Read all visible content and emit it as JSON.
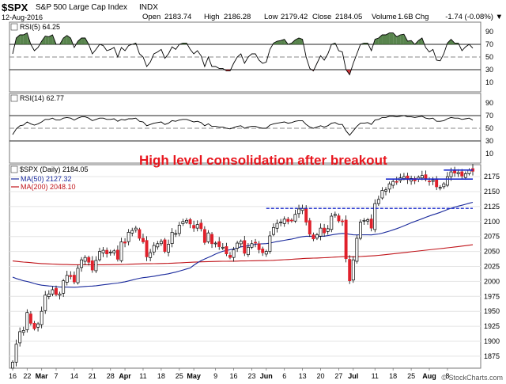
{
  "header": {
    "symbol": "$SPX",
    "name": "S&P 500 Large Cap Index",
    "exchange": "INDX",
    "date": "12-Aug-2016",
    "open_label": "Open",
    "open": "2183.74",
    "high_label": "High",
    "high": "2186.28",
    "low_label": "Low",
    "low": "2179.42",
    "close_label": "Close",
    "close": "2184.05",
    "volume_label": "Volume",
    "volume": "1.6B",
    "chg_label": "Chg",
    "chg": "-1.74 (-0.08%)",
    "chg_arrow": "▼",
    "credit": "© StockCharts.com"
  },
  "colors": {
    "up": "#ffffff",
    "down": "#e0202b",
    "candle_edge": "#000000",
    "ma50": "#1a2a9c",
    "ma200": "#c0141a",
    "rsi_fill": "#3b6e2e",
    "annotation": "#e8161e",
    "resistance": "#1a2acc"
  },
  "chart_data": {
    "type": "candlestick",
    "annotation": "High level consolidation after breakout",
    "x_labels": [
      "16",
      "22",
      "Mar",
      "7",
      "14",
      "21",
      "28",
      "Apr",
      "11",
      "18",
      "25",
      "May",
      "9",
      "16",
      "23",
      "Jun",
      "6",
      "13",
      "20",
      "27",
      "Jul",
      "11",
      "18",
      "25",
      "Aug",
      "8"
    ],
    "price_pane": {
      "label": "$SPX (Daily) 2184.05",
      "legend": [
        {
          "name": "MA(50) 2127.32"
        },
        {
          "name": "MA(200) 2048.10"
        }
      ],
      "ticks": [
        1875,
        1900,
        1925,
        1950,
        1975,
        2000,
        2025,
        2050,
        2075,
        2100,
        2125,
        2150,
        2175
      ],
      "ylim": [
        1855,
        2195
      ],
      "closes": [
        1865,
        1895,
        1916,
        1918,
        1948,
        1930,
        1921,
        1929,
        1950,
        1977,
        1979,
        1986,
        1978,
        1979,
        2001,
        2010,
        2008,
        1999,
        2022,
        2036,
        2040,
        2032,
        2019,
        2035,
        2050,
        2052,
        2046,
        2049,
        2051,
        2037,
        2066,
        2064,
        2082,
        2085,
        2089,
        2072,
        2066,
        2041,
        2048,
        2060,
        2063,
        2067,
        2050,
        2062,
        2082,
        2080,
        2094,
        2100,
        2102,
        2096,
        2089,
        2095,
        2088,
        2065,
        2081,
        2063,
        2064,
        2058,
        2057,
        2046,
        2040,
        2053,
        2064,
        2067,
        2047,
        2057,
        2063,
        2064,
        2053,
        2048,
        2050,
        2076,
        2090,
        2097,
        2099,
        2104,
        2100,
        2102,
        2112,
        2121,
        2122,
        2099,
        2079,
        2071,
        2078,
        2089,
        2081,
        2088,
        2109,
        2112,
        2101,
        2100,
        2038,
        2001,
        2036,
        2072,
        2099,
        2102,
        2103,
        2089,
        2130,
        2137,
        2152,
        2153,
        2163,
        2167,
        2166,
        2173,
        2175,
        2170,
        2172,
        2168,
        2174,
        2177,
        2170,
        2167,
        2169,
        2158,
        2157,
        2163,
        2175,
        2183,
        2181,
        2182,
        2176,
        2180,
        2186,
        2184
      ],
      "resistance_levels": [
        {
          "name": "breakout",
          "value": 2122
        },
        {
          "name": "consolidation-low",
          "value": 2171
        },
        {
          "name": "consolidation-high",
          "value": 2186
        }
      ]
    },
    "rsi14_pane": {
      "label": "RSI(14) 62.77",
      "ticks": [
        10,
        30,
        50,
        70,
        90
      ],
      "ylim": [
        0,
        100
      ],
      "values": [
        40,
        49,
        54,
        55,
        60,
        57,
        55,
        57,
        60,
        64,
        64,
        66,
        63,
        63,
        66,
        67,
        66,
        63,
        66,
        68,
        68,
        66,
        62,
        64,
        66,
        66,
        64,
        64,
        65,
        61,
        64,
        63,
        65,
        65,
        66,
        61,
        60,
        54,
        56,
        58,
        59,
        60,
        56,
        58,
        62,
        61,
        63,
        64,
        64,
        62,
        60,
        61,
        59,
        54,
        57,
        53,
        53,
        52,
        52,
        50,
        49,
        51,
        53,
        54,
        50,
        52,
        53,
        53,
        51,
        50,
        50,
        55,
        57,
        58,
        59,
        60,
        58,
        59,
        61,
        62,
        62,
        56,
        52,
        50,
        52,
        54,
        52,
        54,
        58,
        59,
        56,
        56,
        46,
        39,
        46,
        53,
        58,
        58,
        59,
        56,
        63,
        64,
        67,
        67,
        69,
        69,
        68,
        69,
        70,
        68,
        68,
        67,
        68,
        69,
        66,
        65,
        66,
        61,
        61,
        62,
        65,
        67,
        66,
        66,
        64,
        65,
        66,
        63
      ]
    },
    "rsi5_pane": {
      "label": "RSI(5) 64.25",
      "ticks": [
        10,
        30,
        50,
        70,
        90
      ],
      "ylim": [
        0,
        100
      ],
      "values": [
        55,
        80,
        85,
        85,
        88,
        70,
        60,
        65,
        75,
        83,
        82,
        85,
        70,
        70,
        80,
        84,
        80,
        65,
        75,
        80,
        80,
        70,
        55,
        62,
        70,
        68,
        60,
        62,
        65,
        50,
        65,
        60,
        68,
        70,
        72,
        55,
        50,
        35,
        42,
        55,
        58,
        62,
        48,
        55,
        66,
        62,
        70,
        72,
        72,
        62,
        55,
        60,
        52,
        35,
        50,
        35,
        35,
        32,
        32,
        28,
        28,
        40,
        50,
        55,
        40,
        50,
        55,
        55,
        45,
        40,
        42,
        62,
        72,
        75,
        76,
        78,
        70,
        72,
        77,
        80,
        78,
        50,
        32,
        28,
        40,
        52,
        45,
        55,
        70,
        72,
        60,
        58,
        30,
        22,
        40,
        55,
        70,
        72,
        72,
        60,
        78,
        80,
        85,
        85,
        88,
        88,
        82,
        85,
        86,
        75,
        76,
        70,
        76,
        80,
        65,
        58,
        62,
        45,
        44,
        55,
        72,
        78,
        72,
        72,
        60,
        66,
        70,
        64
      ]
    }
  }
}
